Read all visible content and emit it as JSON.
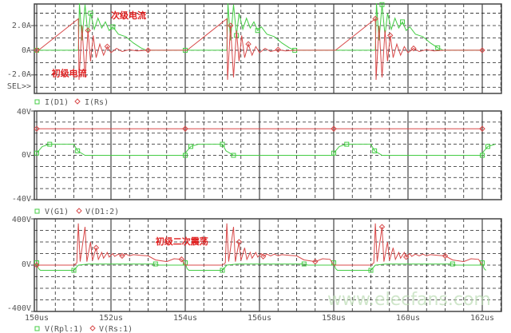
{
  "colors": {
    "green": "#44cc44",
    "red": "#d84a4a",
    "grid": "#333333",
    "text": "#555555",
    "annotation": "#e02020"
  },
  "x_axis": {
    "ticks": [
      150,
      152,
      154,
      156,
      158,
      160,
      162
    ],
    "tick_labels": [
      "150us",
      "152us",
      "154us",
      "156us",
      "158us",
      "160us",
      "162us"
    ],
    "range_us": [
      150,
      162.5
    ]
  },
  "watermark": "www.elecfans.com",
  "repeat_period_us": 4,
  "chart_data": [
    {
      "type": "line",
      "ylim": [
        -3.5,
        3.75
      ],
      "y_ticks": [
        2,
        0,
        -2
      ],
      "y_tick_labels": [
        "2.0A",
        "0A",
        "-2.0A"
      ],
      "extra_label": "SEL>>",
      "annotations": [
        {
          "text": "次级电流",
          "t": 152.0,
          "y": 2.6
        },
        {
          "text": "初级电流",
          "t": 150.4,
          "y": -2.1
        }
      ],
      "series": [
        {
          "name": "I(D1)",
          "color": "green",
          "marker": "square",
          "points": [
            [
              150,
              0
            ],
            [
              151.12,
              0
            ],
            [
              151.15,
              3.8
            ],
            [
              151.22,
              0.8
            ],
            [
              151.3,
              3.7
            ],
            [
              151.38,
              1.2
            ],
            [
              151.45,
              3.0
            ],
            [
              151.55,
              1.7
            ],
            [
              151.65,
              2.6
            ],
            [
              151.75,
              1.8
            ],
            [
              151.85,
              2.3
            ],
            [
              151.95,
              1.6
            ],
            [
              152.05,
              1.9
            ],
            [
              152.2,
              1.3
            ],
            [
              152.4,
              1.1
            ],
            [
              152.6,
              0.6
            ],
            [
              152.8,
              0.2
            ],
            [
              152.95,
              0
            ],
            [
              154,
              0
            ]
          ]
        },
        {
          "name": "I(Rs)",
          "color": "red",
          "marker": "diamond",
          "points": [
            [
              150,
              0
            ],
            [
              150.05,
              0
            ],
            [
              151.12,
              2.55
            ],
            [
              151.14,
              -2.4
            ],
            [
              151.22,
              2.0
            ],
            [
              151.3,
              -2.2
            ],
            [
              151.38,
              1.6
            ],
            [
              151.45,
              -0.9
            ],
            [
              151.52,
              1.2
            ],
            [
              151.6,
              -0.6
            ],
            [
              151.7,
              0.5
            ],
            [
              151.8,
              -0.4
            ],
            [
              151.9,
              0.3
            ],
            [
              152.0,
              -0.2
            ],
            [
              152.15,
              0.15
            ],
            [
              152.3,
              -0.1
            ],
            [
              152.5,
              0.05
            ],
            [
              152.7,
              -0.05
            ],
            [
              153,
              0
            ],
            [
              154,
              0
            ]
          ]
        }
      ]
    },
    {
      "type": "line",
      "ylim": [
        -40,
        40
      ],
      "y_ticks": [
        40,
        0,
        -40
      ],
      "y_tick_labels": [
        "40V",
        "0V",
        "-40V"
      ],
      "series": [
        {
          "name": "V(G1)",
          "color": "green",
          "marker": "square",
          "points": [
            [
              150,
              2
            ],
            [
              150.15,
              8
            ],
            [
              150.35,
              10
            ],
            [
              151.0,
              10
            ],
            [
              151.1,
              4
            ],
            [
              151.3,
              0
            ],
            [
              154,
              0
            ]
          ]
        },
        {
          "name": "V(D1:2)",
          "color": "red",
          "marker": "diamond",
          "points": [
            [
              150,
              24
            ],
            [
              154,
              24
            ]
          ]
        }
      ]
    },
    {
      "type": "line",
      "ylim": [
        -400,
        400
      ],
      "y_ticks": [
        400,
        0,
        -400
      ],
      "y_tick_labels": [
        "400V",
        "0V",
        "-400V"
      ],
      "annotations": [
        {
          "text": "初级二次震荡",
          "t": 153.2,
          "y": 180
        }
      ],
      "series": [
        {
          "name": "V(Rpl:1)",
          "color": "green",
          "marker": "square",
          "points": [
            [
              150,
              20
            ],
            [
              150.05,
              -30
            ],
            [
              150.1,
              -45
            ],
            [
              151.0,
              -45
            ],
            [
              151.12,
              0
            ],
            [
              151.4,
              10
            ],
            [
              153.2,
              10
            ],
            [
              153.3,
              0
            ],
            [
              154,
              0
            ]
          ]
        },
        {
          "name": "V(Rs:1)",
          "color": "red",
          "marker": "diamond",
          "points": [
            [
              150,
              0
            ],
            [
              151.0,
              0
            ],
            [
              151.08,
              20
            ],
            [
              151.12,
              360
            ],
            [
              151.17,
              30
            ],
            [
              151.3,
              330
            ],
            [
              151.35,
              30
            ],
            [
              151.45,
              200
            ],
            [
              151.5,
              40
            ],
            [
              151.6,
              150
            ],
            [
              151.66,
              50
            ],
            [
              151.75,
              110
            ],
            [
              151.8,
              60
            ],
            [
              151.9,
              110
            ],
            [
              151.95,
              70
            ],
            [
              152.05,
              100
            ],
            [
              152.1,
              75
            ],
            [
              152.2,
              95
            ],
            [
              152.3,
              80
            ],
            [
              152.4,
              95
            ],
            [
              152.5,
              80
            ],
            [
              152.6,
              90
            ],
            [
              152.8,
              85
            ],
            [
              153.0,
              80
            ],
            [
              153.2,
              45
            ],
            [
              153.5,
              30
            ],
            [
              153.7,
              55
            ],
            [
              153.9,
              50
            ],
            [
              154.0,
              0
            ]
          ]
        }
      ]
    }
  ]
}
